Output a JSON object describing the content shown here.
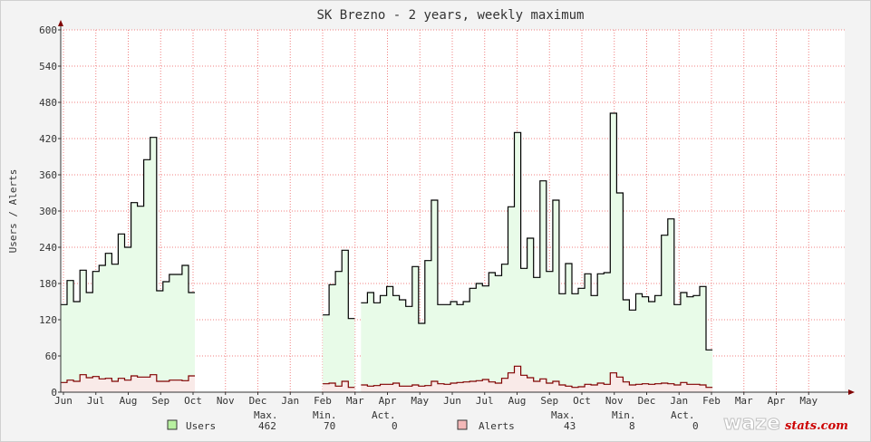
{
  "chart_data": {
    "type": "area",
    "title": "SK Brezno - 2 years, weekly maximum",
    "ylabel": "Users / Alerts",
    "xlabel": "",
    "ylim": [
      0,
      600
    ],
    "yticks": [
      0,
      60,
      120,
      180,
      240,
      300,
      360,
      420,
      480,
      540,
      600
    ],
    "months": [
      "Jun",
      "Jul",
      "Aug",
      "Sep",
      "Oct",
      "Nov",
      "Dec",
      "Jan",
      "Feb",
      "Mar",
      "Apr",
      "May",
      "Jun",
      "Jul",
      "Aug",
      "Sep",
      "Oct",
      "Nov",
      "Dec",
      "Jan",
      "Feb",
      "Mar",
      "Apr",
      "May"
    ],
    "grid": true,
    "series": [
      {
        "name": "Users",
        "color": "#000000",
        "fill": "#e8fbe8",
        "values": [
          145,
          185,
          150,
          202,
          165,
          200,
          210,
          230,
          212,
          262,
          240,
          314,
          308,
          385,
          422,
          168,
          183,
          195,
          195,
          210,
          165,
          null,
          null,
          null,
          null,
          null,
          null,
          null,
          null,
          null,
          null,
          null,
          null,
          null,
          null,
          null,
          null,
          null,
          null,
          null,
          null,
          128,
          178,
          200,
          235,
          122,
          null,
          148,
          165,
          148,
          160,
          175,
          160,
          153,
          142,
          208,
          114,
          218,
          318,
          145,
          145,
          150,
          145,
          150,
          172,
          180,
          176,
          198,
          193,
          212,
          307,
          430,
          205,
          255,
          190,
          350,
          200,
          318,
          163,
          213,
          163,
          172,
          196,
          160,
          196,
          198,
          462,
          330,
          153,
          136,
          163,
          158,
          150,
          160,
          260,
          287,
          145,
          165,
          158,
          160,
          175,
          70
        ],
        "stats": {
          "max_label": "Max.",
          "max": "462",
          "min_label": "Min.",
          "min": "70",
          "act_label": "Act.",
          "act": "0"
        }
      },
      {
        "name": "Alerts",
        "color": "#800000",
        "fill": "#fbe8e8",
        "values": [
          16,
          20,
          18,
          29,
          24,
          26,
          22,
          23,
          18,
          23,
          20,
          27,
          25,
          25,
          29,
          18,
          18,
          20,
          20,
          19,
          27,
          null,
          null,
          null,
          null,
          null,
          null,
          null,
          null,
          null,
          null,
          null,
          null,
          null,
          null,
          null,
          null,
          null,
          null,
          null,
          null,
          14,
          15,
          10,
          18,
          8,
          null,
          12,
          10,
          11,
          13,
          13,
          15,
          10,
          10,
          12,
          10,
          11,
          18,
          14,
          13,
          15,
          16,
          17,
          18,
          19,
          21,
          17,
          15,
          23,
          32,
          43,
          28,
          24,
          18,
          22,
          15,
          18,
          12,
          10,
          8,
          9,
          13,
          12,
          15,
          13,
          32,
          25,
          17,
          12,
          13,
          14,
          13,
          14,
          15,
          14,
          12,
          16,
          13,
          13,
          12,
          8
        ],
        "stats": {
          "max_label": "Max.",
          "max": "43",
          "min_label": "Min.",
          "min": "8",
          "act_label": "Act.",
          "act": "0"
        }
      }
    ],
    "legend_position": "bottom"
  },
  "logo": {
    "main": "waze",
    "sub": "stats.com"
  }
}
